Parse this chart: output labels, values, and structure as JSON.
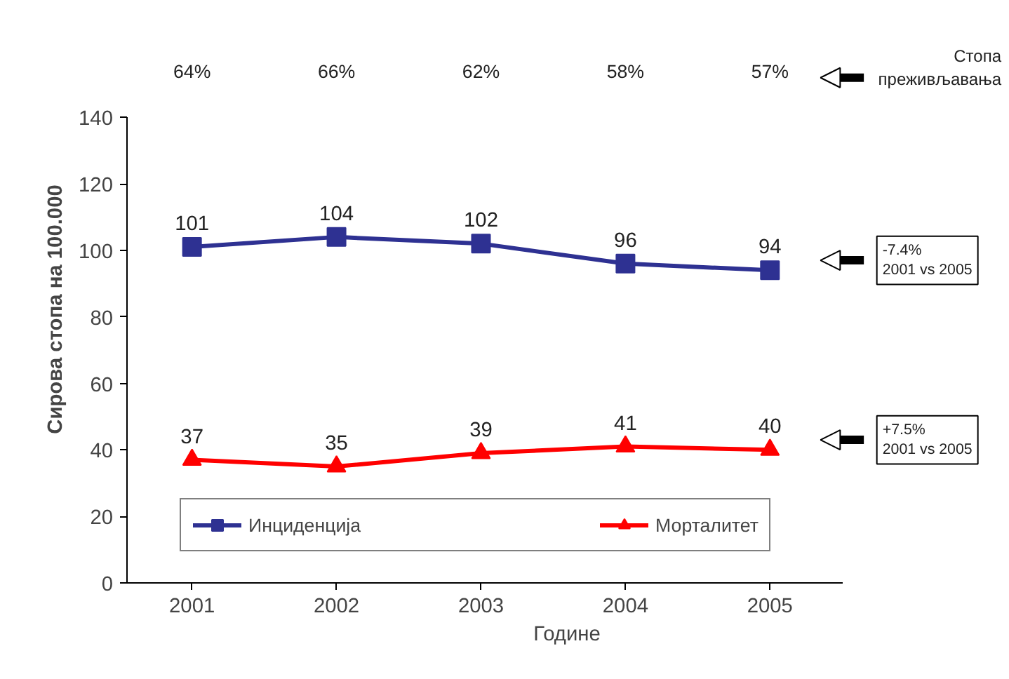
{
  "chart_data": {
    "type": "line",
    "xlabel": "Године",
    "ylabel": "Сирова стопа на 100.000",
    "categories": [
      "2001",
      "2002",
      "2003",
      "2004",
      "2005"
    ],
    "series": [
      {
        "name": "Инциденција",
        "color": "#2e3192",
        "marker": "square",
        "values": [
          101,
          104,
          102,
          96,
          94
        ]
      },
      {
        "name": "Морталитет",
        "color": "#ff0000",
        "marker": "triangle",
        "values": [
          37,
          35,
          39,
          41,
          40
        ]
      }
    ],
    "ylim": [
      0,
      140
    ],
    "yticks": [
      0,
      20,
      40,
      60,
      80,
      100,
      120,
      140
    ],
    "grid": false,
    "legend": "bottom",
    "data_labels": true,
    "line_style": "solid",
    "annotations": [
      "64%",
      "66%",
      "62%",
      "58%",
      "57%",
      "Стопа\nпреживљавања",
      "-7.4%\n2001 vs 2005",
      "+7.5%\n2001 vs 2005"
    ]
  }
}
